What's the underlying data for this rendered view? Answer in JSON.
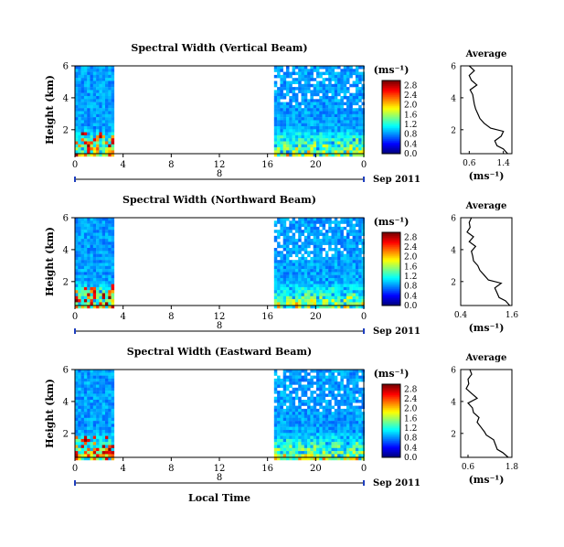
{
  "page": {
    "xaxis_title": "Local Time",
    "date_label": "Sep 2011",
    "month_marker": "8"
  },
  "chart_data": [
    {
      "type": "heatmap",
      "title": "Spectral Width (Vertical Beam)",
      "ylabel": "Height (km)",
      "xlabel": "Local Time",
      "x_ticks": [
        "0",
        "4",
        "8",
        "12",
        "16",
        "20",
        "0"
      ],
      "y_ticks": [
        "2",
        "4",
        "6"
      ],
      "xlim": [
        0,
        24
      ],
      "ylim": [
        0.5,
        6
      ],
      "data_gaps_hours": [
        [
          3.2,
          16.5
        ]
      ],
      "colorbar": {
        "label": "(ms⁻¹)",
        "ticks": [
          "0.0",
          "0.4",
          "0.8",
          "1.2",
          "1.6",
          "2.0",
          "2.4",
          "2.8"
        ],
        "range": [
          0,
          3.0
        ]
      },
      "average_profile": {
        "title": "Average",
        "xlabel": "(ms⁻¹)",
        "x_ticks": [
          "0.6",
          "1.4"
        ],
        "xlim": [
          0.4,
          1.6
        ],
        "y_ticks": [
          "2",
          "4",
          "6"
        ],
        "height_km": [
          0.5,
          0.8,
          1.0,
          1.3,
          1.6,
          1.9,
          2.1,
          2.4,
          2.7,
          3.0,
          3.3,
          3.6,
          3.9,
          4.2,
          4.5,
          4.8,
          5.1,
          5.4,
          5.7,
          6.0
        ],
        "width_ms": [
          1.5,
          1.4,
          1.25,
          1.2,
          1.35,
          1.4,
          1.1,
          0.95,
          0.85,
          0.8,
          0.75,
          0.72,
          0.7,
          0.68,
          0.62,
          0.78,
          0.65,
          0.6,
          0.72,
          0.6
        ]
      }
    },
    {
      "type": "heatmap",
      "title": "Spectral Width (Northward Beam)",
      "ylabel": "Height (km)",
      "xlabel": "Local Time",
      "x_ticks": [
        "0",
        "4",
        "8",
        "12",
        "16",
        "20",
        "0"
      ],
      "y_ticks": [
        "2",
        "4",
        "6"
      ],
      "xlim": [
        0,
        24
      ],
      "ylim": [
        0.5,
        6
      ],
      "data_gaps_hours": [
        [
          3.2,
          16.5
        ]
      ],
      "colorbar": {
        "label": "(ms⁻¹)",
        "ticks": [
          "0.0",
          "0.4",
          "0.8",
          "1.2",
          "1.6",
          "2.0",
          "2.4",
          "2.8"
        ],
        "range": [
          0,
          3.0
        ]
      },
      "average_profile": {
        "title": "Average",
        "xlabel": "(ms⁻¹)",
        "x_ticks": [
          "0.4",
          "1.6"
        ],
        "xlim": [
          0.4,
          1.6
        ],
        "y_ticks": [
          "2",
          "4",
          "6"
        ],
        "height_km": [
          0.5,
          0.8,
          1.0,
          1.3,
          1.6,
          1.9,
          2.1,
          2.4,
          2.7,
          3.0,
          3.3,
          3.6,
          3.9,
          4.2,
          4.5,
          4.8,
          5.1,
          5.4,
          5.7,
          6.0
        ],
        "width_ms": [
          1.55,
          1.45,
          1.3,
          1.25,
          1.2,
          1.35,
          1.05,
          0.95,
          0.85,
          0.8,
          0.7,
          0.68,
          0.65,
          0.75,
          0.6,
          0.7,
          0.55,
          0.62,
          0.6,
          0.65
        ]
      }
    },
    {
      "type": "heatmap",
      "title": "Spectral Width (Eastward Beam)",
      "ylabel": "Height (km)",
      "xlabel": "Local Time",
      "x_ticks": [
        "0",
        "4",
        "8",
        "12",
        "16",
        "20",
        "0"
      ],
      "y_ticks": [
        "2",
        "4",
        "6"
      ],
      "xlim": [
        0,
        24
      ],
      "ylim": [
        0.5,
        6
      ],
      "data_gaps_hours": [
        [
          3.2,
          16.5
        ]
      ],
      "colorbar": {
        "label": "(ms⁻¹)",
        "ticks": [
          "0.0",
          "0.4",
          "0.8",
          "1.2",
          "1.6",
          "2.0",
          "2.4",
          "2.8"
        ],
        "range": [
          0,
          3.0
        ]
      },
      "average_profile": {
        "title": "Average",
        "xlabel": "(ms⁻¹)",
        "x_ticks": [
          "0.6",
          "1.8"
        ],
        "xlim": [
          0.4,
          1.8
        ],
        "y_ticks": [
          "2",
          "4",
          "6"
        ],
        "height_km": [
          0.5,
          0.8,
          1.0,
          1.3,
          1.6,
          1.9,
          2.1,
          2.4,
          2.7,
          3.0,
          3.3,
          3.6,
          3.9,
          4.2,
          4.5,
          4.8,
          5.1,
          5.4,
          5.7,
          6.0
        ],
        "width_ms": [
          1.7,
          1.55,
          1.4,
          1.35,
          1.3,
          1.1,
          1.05,
          0.95,
          0.85,
          0.9,
          0.75,
          0.72,
          0.6,
          0.85,
          0.7,
          0.55,
          0.62,
          0.6,
          0.7,
          0.65
        ]
      }
    }
  ]
}
